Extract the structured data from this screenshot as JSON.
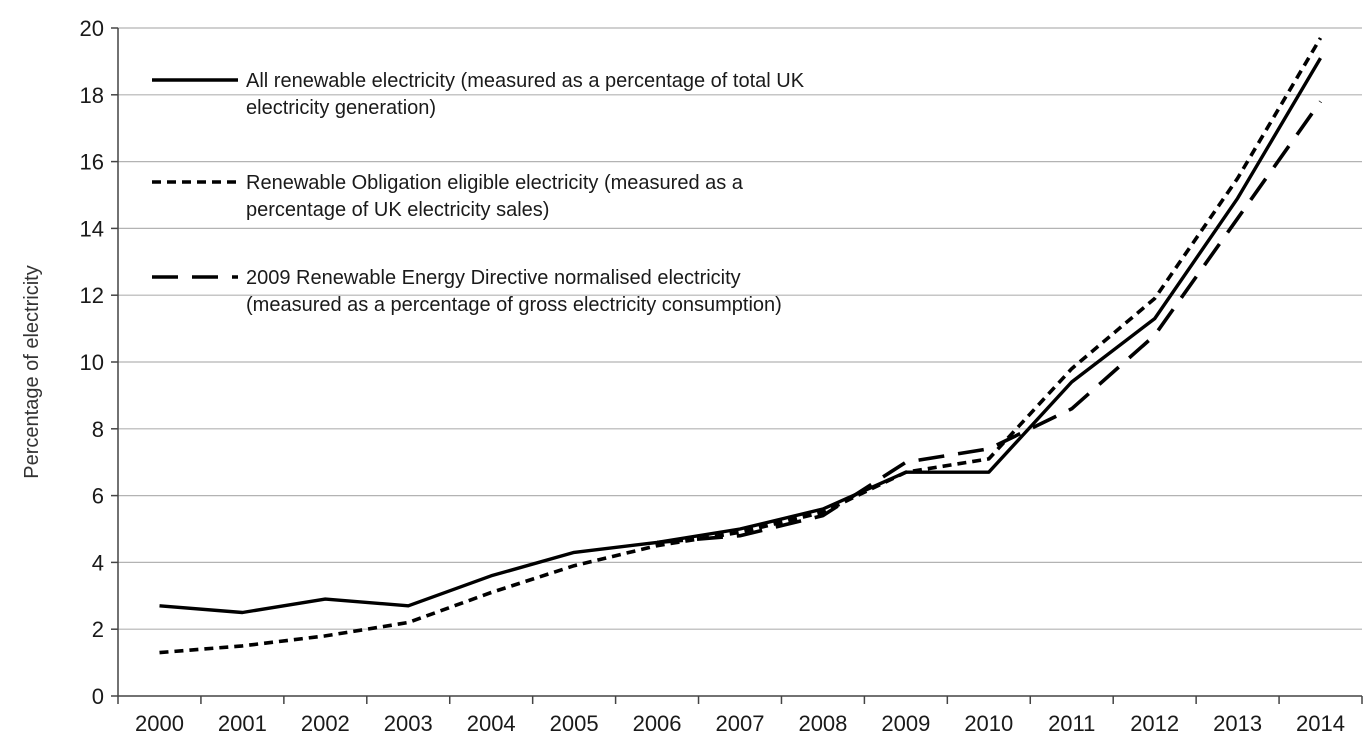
{
  "chart_data": {
    "type": "line",
    "title": "",
    "xlabel": "",
    "ylabel": "Percentage of electricity",
    "ylim": [
      0,
      20
    ],
    "yticks": [
      0,
      2,
      4,
      6,
      8,
      10,
      12,
      14,
      16,
      18,
      20
    ],
    "grid": "horizontal",
    "legend_position": "top-left",
    "categories": [
      "2000",
      "2001",
      "2002",
      "2003",
      "2004",
      "2005",
      "2006",
      "2007",
      "2008",
      "2009",
      "2010",
      "2011",
      "2012",
      "2013",
      "2014"
    ],
    "series": [
      {
        "name": "All renewable electricity (measured as a percentage of total UK electricity generation)",
        "legend_lines": [
          "All renewable electricity (measured as a percentage of total UK",
          "electricity generation)"
        ],
        "style": "solid",
        "color": "#000000",
        "values": [
          2.7,
          2.5,
          2.9,
          2.7,
          3.6,
          4.3,
          4.6,
          5.0,
          5.6,
          6.7,
          6.7,
          9.4,
          11.3,
          14.9,
          19.1
        ]
      },
      {
        "name": "Renewable Obligation eligible electricity (measured as a percentage of UK electricity sales)",
        "legend_lines": [
          "Renewable Obligation eligible electricity (measured as a",
          "percentage of UK electricity sales)"
        ],
        "style": "dotted",
        "color": "#000000",
        "values": [
          1.3,
          1.5,
          1.8,
          2.2,
          3.1,
          3.9,
          4.5,
          4.9,
          5.5,
          6.7,
          7.1,
          9.8,
          11.9,
          15.5,
          19.7
        ]
      },
      {
        "name": "2009 Renewable Energy Directive normalised electricity (measured as a percentage of gross electricity consumption)",
        "legend_lines": [
          "2009 Renewable Energy Directive normalised electricity",
          "(measured as a percentage of gross electricity consumption)"
        ],
        "style": "dashed",
        "color": "#000000",
        "values": [
          null,
          null,
          null,
          null,
          null,
          null,
          4.6,
          4.8,
          5.4,
          7.0,
          7.4,
          8.6,
          10.8,
          14.3,
          17.8
        ]
      }
    ]
  }
}
